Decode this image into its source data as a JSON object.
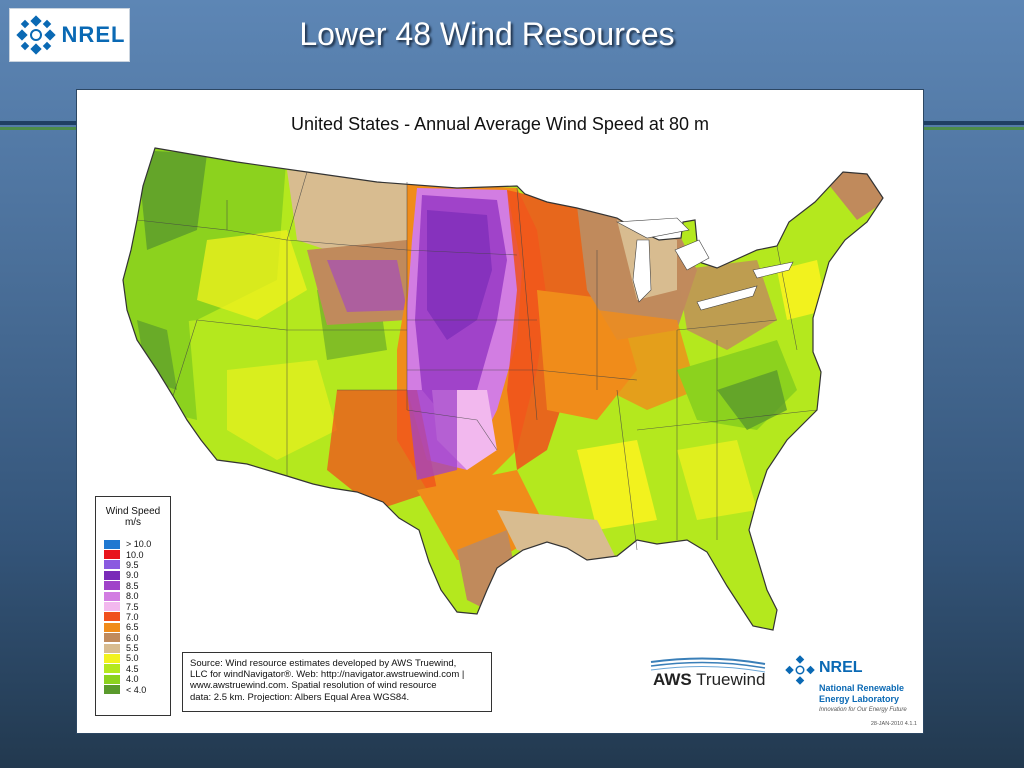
{
  "slide": {
    "title": "Lower 48 Wind Resources",
    "logo_text": "NREL"
  },
  "map": {
    "title": "United States - Annual Average Wind Speed at 80 m",
    "date_stamp": "28-JAN-2010 4.1.1"
  },
  "legend": {
    "title_line1": "Wind Speed",
    "title_line2": "m/s",
    "items": [
      {
        "label": "> 10.0",
        "color": "#1f78d1"
      },
      {
        "label": "10.0",
        "color": "#e8141c"
      },
      {
        "label": "9.5",
        "color": "#8a5ae0"
      },
      {
        "label": "9.0",
        "color": "#7a2bb8"
      },
      {
        "label": "8.5",
        "color": "#a043c9"
      },
      {
        "label": "8.0",
        "color": "#d27de2"
      },
      {
        "label": "7.5",
        "color": "#f2b8ee"
      },
      {
        "label": "7.0",
        "color": "#f0501c"
      },
      {
        "label": "6.5",
        "color": "#f08c1a"
      },
      {
        "label": "6.0",
        "color": "#c08a5c"
      },
      {
        "label": "5.5",
        "color": "#d8bc90"
      },
      {
        "label": "5.0",
        "color": "#f2f21e"
      },
      {
        "label": "4.5",
        "color": "#b4e81e"
      },
      {
        "label": "4.0",
        "color": "#8cd21e"
      },
      {
        "label": "< 4.0",
        "color": "#5a9a2c"
      }
    ]
  },
  "source": {
    "line1": "Source: Wind resource estimates developed by AWS Truewind,",
    "line2": "LLC for windNavigator®. Web: http://navigator.awstruewind.com |",
    "line3": "www.awstruewind.com. Spatial resolution of wind resource",
    "line4": "data: 2.5 km. Projection: Albers Equal Area WGS84."
  },
  "aws_logo": {
    "part1": "AWS",
    "part2": " Truewind"
  },
  "nrel_logo": {
    "word": "NREL",
    "name_line1": "National Renewable",
    "name_line2": "Energy Laboratory",
    "tagline": "Innovation for Our Energy Future"
  },
  "colors": {
    "background_top": "#5d86b5",
    "background_bottom": "#22394f",
    "nrel_blue": "#0a69b4"
  }
}
